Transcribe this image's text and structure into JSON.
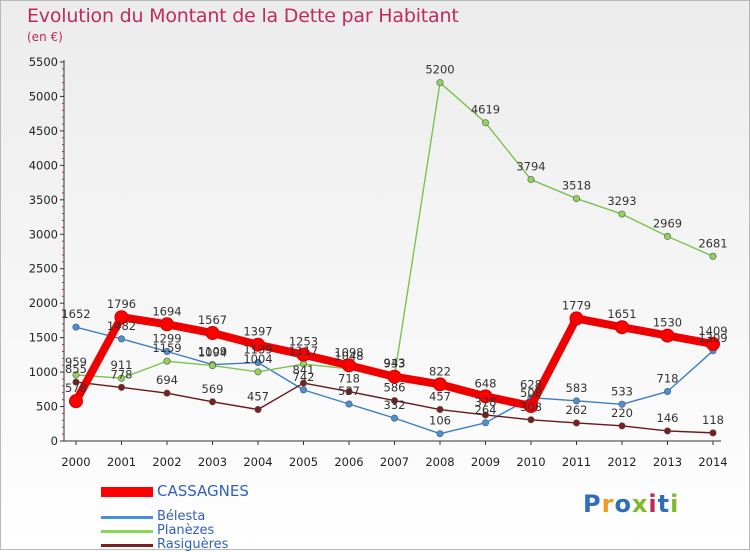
{
  "header": {
    "title": "Evolution du Montant de la Dette par Habitant",
    "subtitle": "(en €)"
  },
  "logo": {
    "text": "Proxiti",
    "colors": [
      "#2f6fb7",
      "#f09a1f",
      "#2f6fb7",
      "#7fba2a",
      "#c0285a",
      "#2f6fb7",
      "#7fba2a"
    ]
  },
  "chart_data": {
    "type": "line",
    "title": "Evolution du Montant de la Dette par Habitant",
    "ylabel": "(en €)",
    "xlabel": "",
    "ylim": [
      0,
      5500
    ],
    "yticks": [
      0,
      500,
      1000,
      1500,
      2000,
      2500,
      3000,
      3500,
      4000,
      4500,
      5000,
      5500
    ],
    "grid": false,
    "legend_position": "bottom-left",
    "x": [
      "2000",
      "2001",
      "2002",
      "2003",
      "2004",
      "2005",
      "2006",
      "2007",
      "2008",
      "2009",
      "2010",
      "2011",
      "2012",
      "2013",
      "2014"
    ],
    "series": [
      {
        "name": "CASSAGNES",
        "color": "#ff0000",
        "values": [
          578,
          1796,
          1694,
          1567,
          1397,
          1253,
          1098,
          933,
          822,
          648,
          508,
          1779,
          1651,
          1530,
          1409
        ],
        "labels": [
          "578",
          "1796",
          "1694",
          "1567",
          "1397",
          "1253",
          "1098",
          "933",
          "822",
          "648",
          "508",
          "1779",
          "1651",
          "1530",
          "1409"
        ]
      },
      {
        "name": "Bélesta",
        "color": "#4a90d9",
        "values": [
          1652,
          1482,
          1299,
          1109,
          1139,
          742,
          537,
          332,
          106,
          264,
          628,
          583,
          533,
          718,
          1309
        ],
        "labels": [
          "1652",
          "1482",
          "1299",
          "1109",
          "1139",
          "742",
          "537",
          "332",
          "106",
          "264",
          "628",
          "583",
          "533",
          "718",
          "1309"
        ]
      },
      {
        "name": "Planèzes",
        "color": "#8ed65a",
        "values": [
          959,
          911,
          1159,
          1094,
          1004,
          1117,
          1048,
          943,
          5200,
          4619,
          3794,
          3518,
          3293,
          2969,
          2681
        ],
        "labels": [
          "959",
          "911",
          "1159",
          "1094",
          "1004",
          "1117",
          "1048",
          "943",
          "5200",
          "4619",
          "3794",
          "3518",
          "3293",
          "2969",
          "2681"
        ]
      },
      {
        "name": "Rasiguères",
        "color": "#7a1f1f",
        "values": [
          855,
          778,
          694,
          569,
          457,
          841,
          718,
          586,
          457,
          378,
          308,
          262,
          220,
          146,
          118
        ],
        "labels": [
          "855",
          "778",
          "694",
          "569",
          "457",
          "841",
          "718",
          "586",
          "457",
          "378",
          "308",
          "262",
          "220",
          "146",
          "118"
        ]
      }
    ]
  }
}
